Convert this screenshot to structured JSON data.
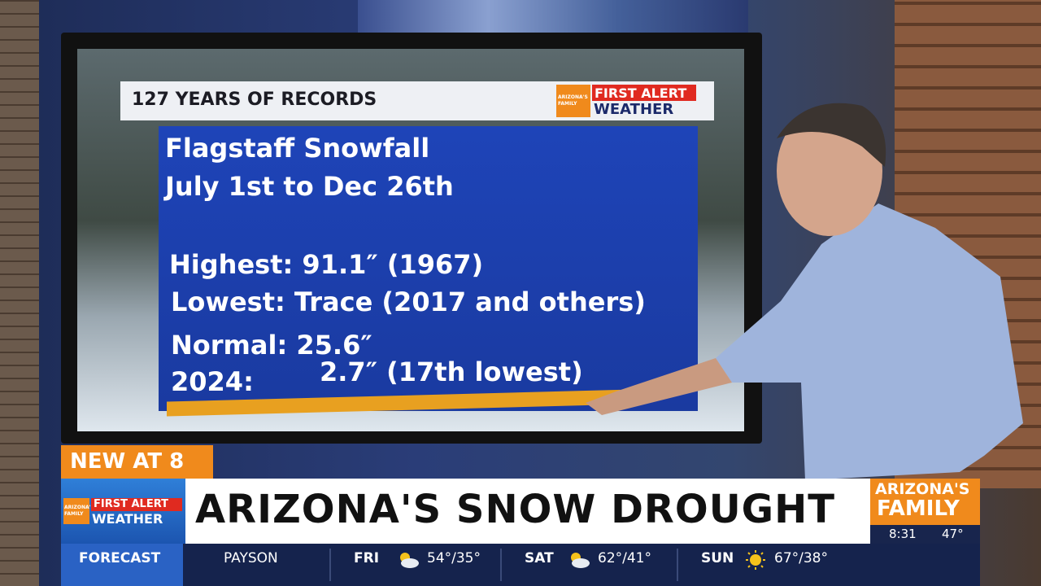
{
  "screen": {
    "header": "127 YEARS OF RECORDS",
    "logo": {
      "family": "ARIZONA'S FAMILY",
      "first_alert": "FIRST ALERT",
      "weather": "WEATHER"
    },
    "title": [
      "Flagstaff Snowfall",
      "July 1st to Dec 26th"
    ],
    "records": [
      "Highest: 91.1″ (1967)",
      "Lowest: Trace (2017 and others)",
      "Normal: 25.6″"
    ],
    "current": {
      "label": "2024:",
      "value": "2.7″ (17th lowest)"
    }
  },
  "lower_third": {
    "tag": "NEW AT 8",
    "headline": "ARIZONA'S SNOW DROUGHT",
    "logo": {
      "family": "ARIZONA'S FAMILY",
      "first_alert": "FIRST ALERT",
      "weather": "WEATHER"
    },
    "station": {
      "line1": "ARIZONA'S",
      "line2": "FAMILY"
    },
    "time": "8:31",
    "temperature": "47°"
  },
  "ticker": {
    "label": "FORECAST",
    "location": "PAYSON",
    "days": [
      {
        "day": "FRI",
        "temps": "54°/35°"
      },
      {
        "day": "SAT",
        "temps": "62°/41°"
      },
      {
        "day": "SUN",
        "temps": "67°/38°"
      }
    ]
  }
}
